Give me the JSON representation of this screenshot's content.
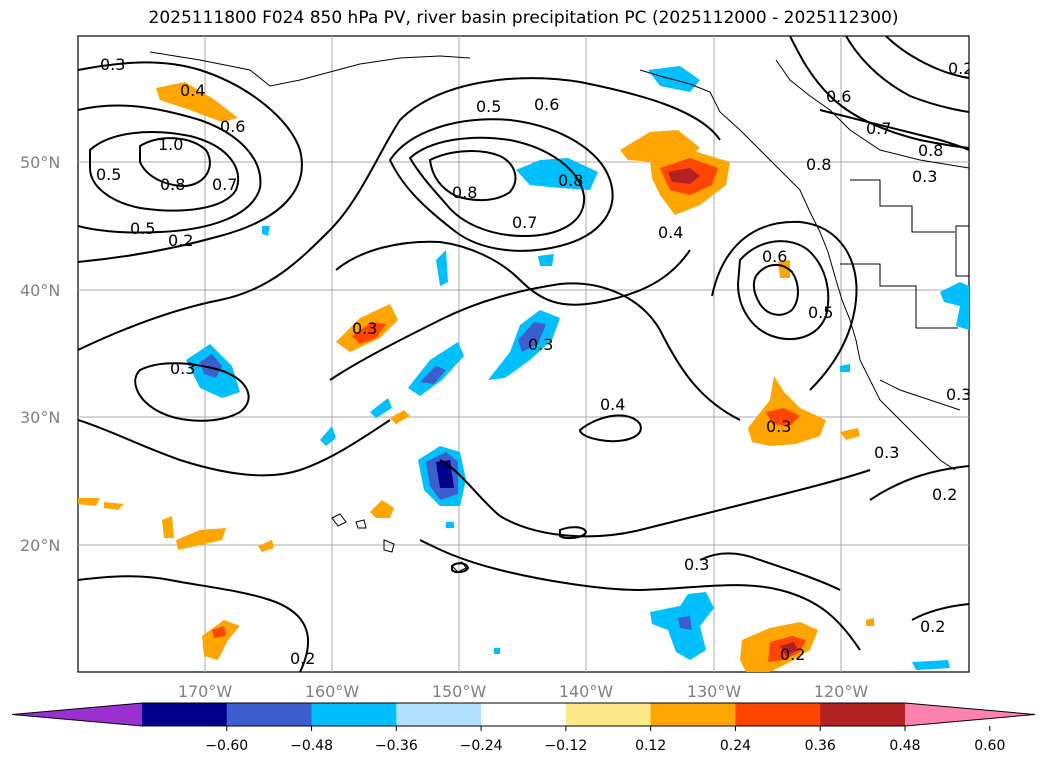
{
  "title": "2025111800 F024 850 hPa PV, river basin precipitation PC (2025112000 - 2025112300)",
  "lat_labels": [
    "50°N",
    "40°N",
    "30°N",
    "20°N"
  ],
  "lon_labels": [
    "170°W",
    "160°W",
    "150°W",
    "140°W",
    "130°W",
    "120°W"
  ],
  "contour_labels": [
    "0.3",
    "0.4",
    "0.5",
    "0.6",
    "0.7",
    "0.8",
    "1.0",
    "0.2",
    "0.3",
    "0.5",
    "0.6",
    "0.8",
    "0.7",
    "0.8",
    "0.4",
    "0.6",
    "0.5",
    "0.3",
    "0.3",
    "0.4",
    "0.3",
    "0.3",
    "0.2",
    "0.2",
    "0.3",
    "0.2",
    "0.8",
    "0.7",
    "0.6",
    "0.8",
    "0.5",
    "0.2",
    "0.3",
    "0.3",
    "0.2"
  ],
  "colorbar": {
    "ticks": [
      "−0.60",
      "−0.48",
      "−0.36",
      "−0.24",
      "−0.12",
      "0.12",
      "0.24",
      "0.36",
      "0.48",
      "0.60"
    ],
    "colors": [
      "#9b30d0",
      "#00008b",
      "#3c5fcd",
      "#00bfff",
      "#b0e2ff",
      "#ffffff",
      "#ffe88a",
      "#ffa500",
      "#ff4500",
      "#b22222",
      "#ff82ab"
    ]
  },
  "fill_colors": {
    "cyan": "#00bfff",
    "blue": "#3c5fcd",
    "navy": "#00008b",
    "orange": "#ffa500",
    "red": "#ff4500",
    "darkred": "#b22222"
  }
}
